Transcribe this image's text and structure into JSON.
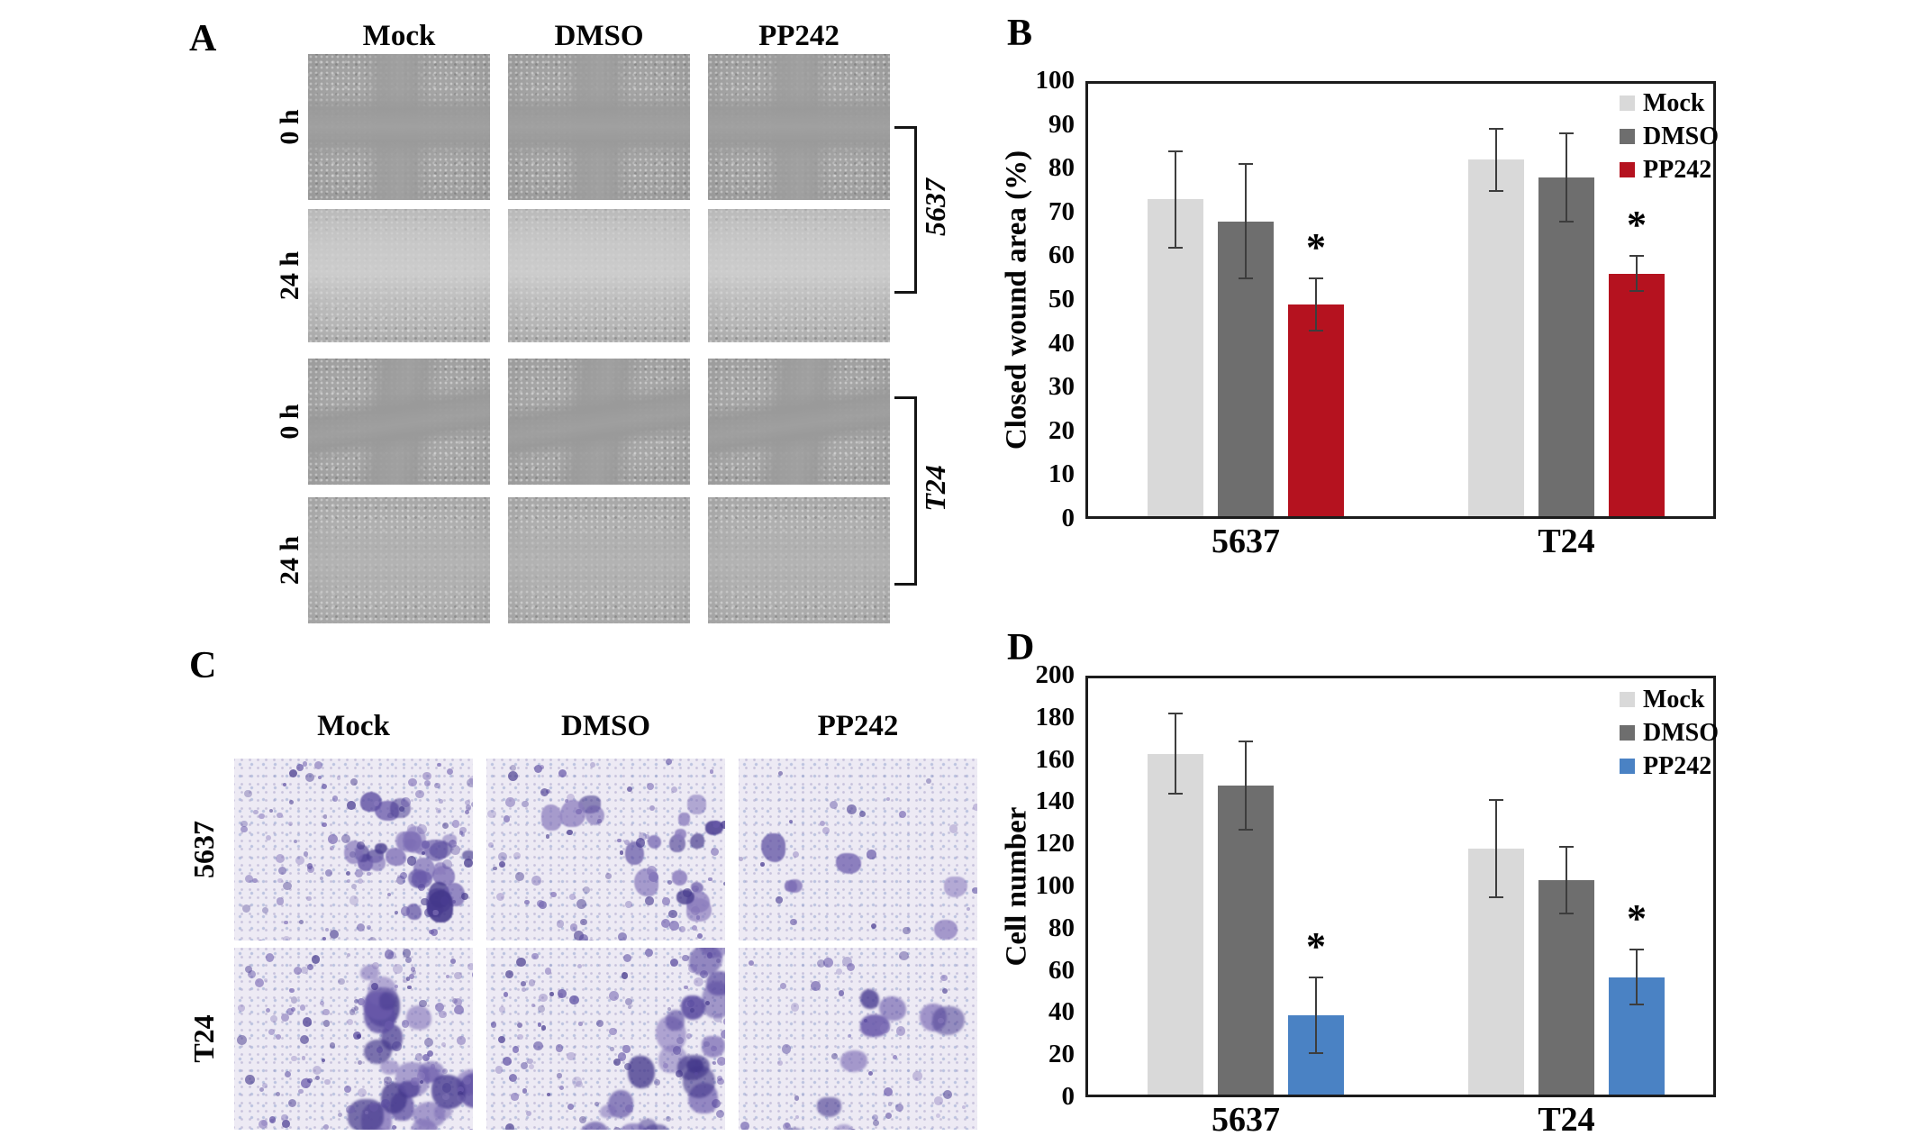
{
  "panel_a": {
    "label": "A",
    "column_headers": [
      "Mock",
      "DMSO",
      "PP242"
    ],
    "rows": [
      {
        "time_label": "0 h",
        "group": "5637"
      },
      {
        "time_label": "24 h",
        "group": "5637"
      },
      {
        "time_label": "0 h",
        "group": "T24"
      },
      {
        "time_label": "24 h",
        "group": "T24"
      }
    ],
    "bracket_labels": [
      "5637",
      "T24"
    ]
  },
  "panel_c": {
    "label": "C",
    "column_headers": [
      "Mock",
      "DMSO",
      "PP242"
    ],
    "row_labels": [
      "5637",
      "T24"
    ],
    "cell_density": [
      [
        0.95,
        0.6,
        0.13
      ],
      [
        1.0,
        0.78,
        0.3
      ]
    ]
  },
  "chart_data": [
    {
      "id": "B",
      "panel_label": "B",
      "type": "bar",
      "categories": [
        "5637",
        "T24"
      ],
      "series": [
        {
          "name": "Mock",
          "color": "#d9d9d9",
          "values": [
            73,
            82
          ],
          "errors": [
            11,
            7
          ]
        },
        {
          "name": "DMSO",
          "color": "#6e6e6e",
          "values": [
            68,
            78
          ],
          "errors": [
            13,
            10
          ]
        },
        {
          "name": "PP242",
          "color": "#b5121f",
          "values": [
            49,
            56
          ],
          "errors": [
            6,
            4
          ],
          "significance": [
            "*",
            "*"
          ]
        }
      ],
      "ylabel": "Closed wound area (%)",
      "ylim": [
        0,
        100
      ],
      "ytick_step": 10,
      "legend_position": "top-right",
      "grid": false
    },
    {
      "id": "D",
      "panel_label": "D",
      "type": "bar",
      "categories": [
        "5637",
        "T24"
      ],
      "series": [
        {
          "name": "Mock",
          "color": "#d9d9d9",
          "values": [
            163,
            118
          ],
          "errors": [
            19,
            23
          ]
        },
        {
          "name": "DMSO",
          "color": "#6e6e6e",
          "values": [
            148,
            103
          ],
          "errors": [
            21,
            16
          ]
        },
        {
          "name": "PP242",
          "color": "#4a82c4",
          "values": [
            39,
            57
          ],
          "errors": [
            18,
            13
          ],
          "significance": [
            "*",
            "*"
          ]
        }
      ],
      "ylabel": "Cell number",
      "ylim": [
        0,
        200
      ],
      "ytick_step": 20,
      "legend_position": "top-right",
      "grid": false
    }
  ]
}
